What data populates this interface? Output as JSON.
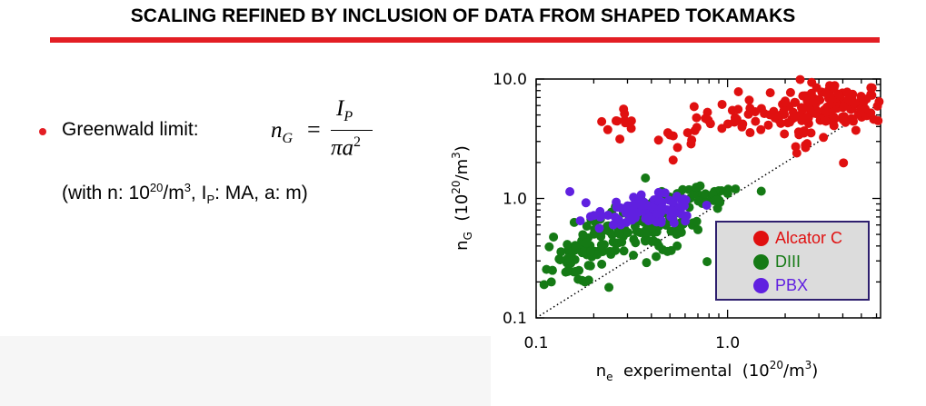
{
  "title": "SCALING REFINED BY INCLUSION OF DATA FROM SHAPED TOKAMAKS",
  "colors": {
    "accent": "#e31e24"
  },
  "text": {
    "greenwald_label": "Greenwald limit:",
    "units_prefix": "(with n: 10",
    "units_exp20": "20",
    "units_m": "/m",
    "units_exp3": "3",
    "units_ip": ", I",
    "units_ip_sub": "P",
    "units_suffix": ": MA, a: m)"
  },
  "formula": {
    "lhs": "n",
    "lhs_sub": "G",
    "equals": "=",
    "numerator": "I",
    "numerator_sub": "P",
    "denominator": "πa",
    "denominator_exp": "2"
  },
  "chart_data": {
    "type": "scatter",
    "xscale": "log",
    "yscale": "log",
    "xlim": [
      0.1,
      6.3
    ],
    "ylim": [
      0.1,
      10.0
    ],
    "xticks": [
      "0.1",
      "1.0"
    ],
    "yticks": [
      "0.1",
      "1.0",
      "10.0"
    ],
    "reference_line": "y = x (dotted)",
    "legend_position": "bottom-right",
    "series": [
      {
        "name": "Alcator C",
        "color": "#e01010",
        "clusters": [
          {
            "x": 0.3,
            "y": 4.2,
            "sx": 0.05,
            "sy": 0.09,
            "n": 10
          },
          {
            "x": 0.55,
            "y": 3.2,
            "sx": 0.08,
            "sy": 0.07,
            "n": 10
          },
          {
            "x": 1.5,
            "y": 4.8,
            "sx": 0.17,
            "sy": 0.07,
            "n": 45
          },
          {
            "x": 3.5,
            "y": 6.0,
            "sx": 0.14,
            "sy": 0.1,
            "n": 130
          },
          {
            "x": 2.6,
            "y": 3.0,
            "sx": 0.07,
            "sy": 0.09,
            "n": 8
          }
        ],
        "points": [
          [
            0.22,
            4.4
          ],
          [
            0.29,
            4.5
          ],
          [
            0.5,
            3.4
          ],
          [
            1.2,
            4.2
          ],
          [
            2.3,
            2.4
          ],
          [
            2.55,
            2.8
          ],
          [
            5.6,
            5.2
          ],
          [
            5.8,
            4.6
          ]
        ]
      },
      {
        "name": "DIII",
        "color": "#157a15",
        "clusters": [
          {
            "x": 0.15,
            "y": 0.3,
            "sx": 0.06,
            "sy": 0.1,
            "n": 30
          },
          {
            "x": 0.21,
            "y": 0.45,
            "sx": 0.08,
            "sy": 0.1,
            "n": 45
          },
          {
            "x": 0.42,
            "y": 0.6,
            "sx": 0.12,
            "sy": 0.12,
            "n": 100
          },
          {
            "x": 0.75,
            "y": 1.0,
            "sx": 0.08,
            "sy": 0.05,
            "n": 30
          }
        ],
        "points": [
          [
            0.11,
            0.19
          ],
          [
            0.12,
            0.2
          ],
          [
            0.18,
            0.2
          ],
          [
            0.24,
            0.18
          ],
          [
            1.5,
            1.15
          ],
          [
            1.1,
            1.2
          ]
        ]
      },
      {
        "name": "PBX",
        "color": "#6020e0",
        "clusters": [
          {
            "x": 0.4,
            "y": 0.8,
            "sx": 0.12,
            "sy": 0.06,
            "n": 110
          }
        ],
        "points": [
          [
            0.15,
            1.14
          ],
          [
            0.17,
            0.65
          ],
          [
            0.2,
            0.72
          ]
        ]
      }
    ],
    "xlabel": "n",
    "xlabel_sub": "e",
    "xlabel_text": "  experimental  (10",
    "xlabel_exp": "20",
    "xlabel_tail": "/m",
    "xlabel_exp2": "3",
    "xlabel_close": ")",
    "ylabel": "n",
    "ylabel_sub": "G",
    "ylabel_text": "  (10",
    "ylabel_exp": "20",
    "ylabel_tail": "/m",
    "ylabel_exp2": "3",
    "ylabel_close": ")"
  }
}
